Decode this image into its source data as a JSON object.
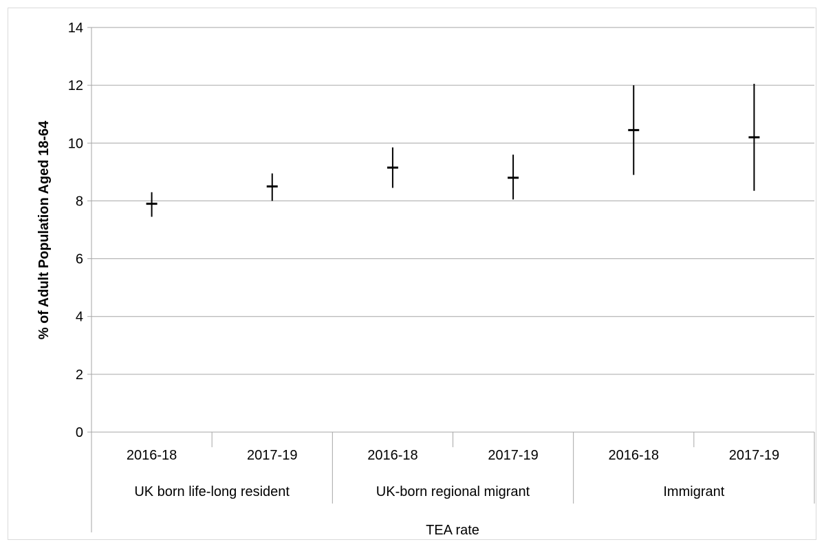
{
  "chart_data": {
    "type": "error-bar",
    "title": "",
    "ylabel": "% of Adult Population Aged 18-64",
    "xlabel": "TEA rate",
    "ylim": [
      0,
      14
    ],
    "yticks": [
      "0",
      "2",
      "4",
      "6",
      "8",
      "10",
      "12",
      "14"
    ],
    "grid": true,
    "groups": [
      {
        "label": "UK born life-long resident",
        "periods": [
          "2016-18",
          "2017-19"
        ]
      },
      {
        "label": "UK-born regional migrant",
        "periods": [
          "2016-18",
          "2017-19"
        ]
      },
      {
        "label": "Immigrant",
        "periods": [
          "2016-18",
          "2017-19"
        ]
      }
    ],
    "series": [
      {
        "values": [
          {
            "group": "UK born life-long resident",
            "period": "2016-18",
            "mid": 7.9,
            "low": 7.45,
            "high": 8.3
          },
          {
            "group": "UK born life-long resident",
            "period": "2017-19",
            "mid": 8.5,
            "low": 8.0,
            "high": 8.95
          },
          {
            "group": "UK-born regional migrant",
            "period": "2016-18",
            "mid": 9.15,
            "low": 8.45,
            "high": 9.85
          },
          {
            "group": "UK-born regional migrant",
            "period": "2017-19",
            "mid": 8.8,
            "low": 8.05,
            "high": 9.6
          },
          {
            "group": "Immigrant",
            "period": "2016-18",
            "mid": 10.45,
            "low": 8.9,
            "high": 12.0
          },
          {
            "group": "Immigrant",
            "period": "2017-19",
            "mid": 10.2,
            "low": 8.35,
            "high": 12.05
          }
        ]
      }
    ],
    "colors": {
      "grid": "#a6a6a6",
      "axis": "#a6a6a6",
      "marker": "#000000"
    }
  }
}
